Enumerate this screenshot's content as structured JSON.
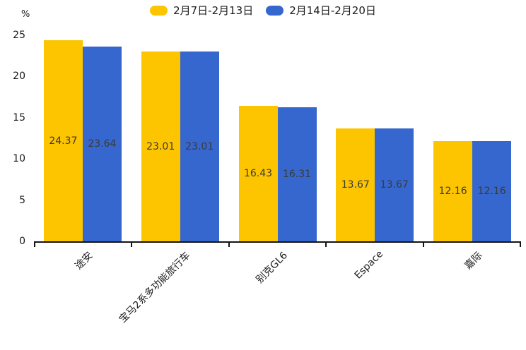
{
  "chart": {
    "unit_label": "%",
    "legend": [
      {
        "label": "2月7日-2月13日",
        "color": "#FDC500"
      },
      {
        "label": "2月14日-2月20日",
        "color": "#3667CE"
      }
    ]
  },
  "chart_data": {
    "type": "bar",
    "categories": [
      "途安",
      "宝马2系多功能旅行车",
      "别克GL6",
      "Espace",
      "嘉际"
    ],
    "series": [
      {
        "name": "2月7日-2月13日",
        "color": "#FDC500",
        "values": [
          24.37,
          23.01,
          16.43,
          13.67,
          12.16
        ]
      },
      {
        "name": "2月14日-2月20日",
        "color": "#3667CE",
        "values": [
          23.64,
          23.01,
          16.31,
          13.67,
          12.16
        ]
      }
    ],
    "title": "",
    "xlabel": "",
    "ylabel": "%",
    "ylim": [
      0,
      25
    ],
    "yticks": [
      0,
      5,
      10,
      15,
      20,
      25
    ],
    "grid": false,
    "legend_position": "top-center",
    "value_labels": "inside-center",
    "value_label_color": "#3a3a3a",
    "axis_color": "#141414"
  }
}
